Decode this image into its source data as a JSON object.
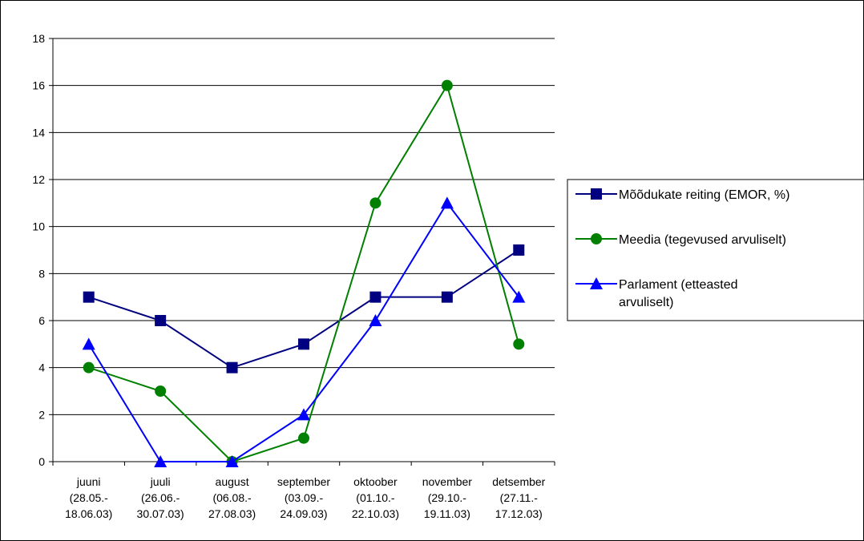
{
  "chart_data": {
    "type": "line",
    "title": "",
    "xlabel": "",
    "ylabel": "",
    "ylim": [
      0,
      18
    ],
    "yticks": [
      0,
      2,
      4,
      6,
      8,
      10,
      12,
      14,
      16,
      18
    ],
    "grid": "horizontal",
    "legend_position": "right",
    "categories": [
      [
        "juuni",
        "(28.05.-",
        "18.06.03)"
      ],
      [
        "juuli",
        "(26.06.-",
        "30.07.03)"
      ],
      [
        "august",
        "(06.08.-",
        "27.08.03)"
      ],
      [
        "september",
        "(03.09.-",
        "24.09.03)"
      ],
      [
        "oktoober",
        "(01.10.-",
        "22.10.03)"
      ],
      [
        "november",
        "(29.10.-",
        "19.11.03)"
      ],
      [
        "detsember",
        "(27.11.-",
        "17.12.03)"
      ]
    ],
    "series": [
      {
        "name": "Mõõdukate reiting (EMOR, %)",
        "legend_lines": [
          "Mõõdukate reiting (EMOR, %)"
        ],
        "values": [
          7,
          6,
          4,
          5,
          7,
          7,
          9
        ],
        "color": "#000080",
        "marker": "square"
      },
      {
        "name": "Meedia (tegevused arvuliselt)",
        "legend_lines": [
          "Meedia (tegevused arvuliselt)"
        ],
        "values": [
          4,
          3,
          0,
          1,
          11,
          16,
          5
        ],
        "color": "#008000",
        "marker": "circle"
      },
      {
        "name": "Parlament (etteasted arvuliselt)",
        "legend_lines": [
          "Parlament (etteasted",
          "arvuliselt)"
        ],
        "values": [
          5,
          0,
          0,
          2,
          6,
          11,
          7
        ],
        "color": "#0000ff",
        "marker": "triangle"
      }
    ]
  }
}
